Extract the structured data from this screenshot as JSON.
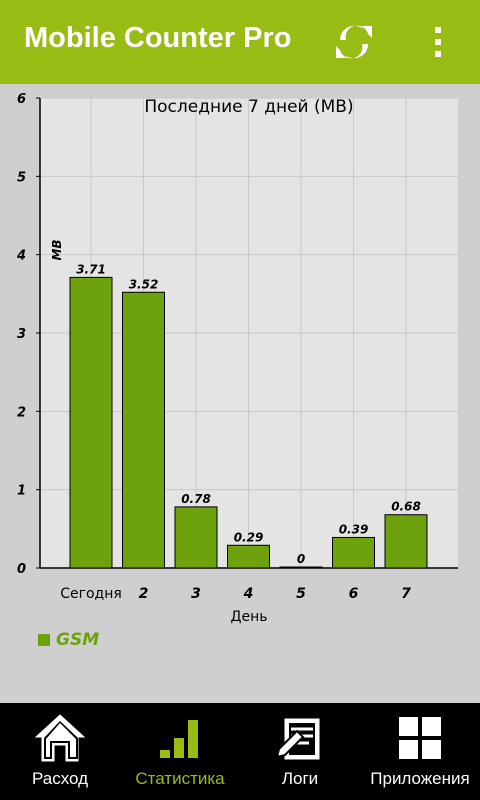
{
  "app": {
    "title": "Mobile Counter Pro"
  },
  "actions": {
    "refresh_icon": "refresh-icon",
    "overflow_icon": "overflow-menu-icon"
  },
  "chart_data": {
    "type": "bar",
    "title": "Последние 7 дней (MB)",
    "xlabel": "День",
    "ylabel": "MB",
    "ylim": [
      0,
      6
    ],
    "yticks": [
      0,
      1,
      2,
      3,
      4,
      5,
      6
    ],
    "categories": [
      "Сегодня",
      "2",
      "3",
      "4",
      "5",
      "6",
      "7"
    ],
    "series": [
      {
        "name": "GSM",
        "values": [
          3.71,
          3.52,
          0.78,
          0.29,
          0,
          0.39,
          0.68
        ],
        "color": "#6ea20c"
      }
    ],
    "data_labels": [
      "3.71",
      "3.52",
      "0.78",
      "0.29",
      "0",
      "0.39",
      "0.68"
    ],
    "grid": true,
    "legend_position": "bottom-left"
  },
  "legend": {
    "label": "GSM",
    "color": "#6ea20c"
  },
  "nav": {
    "items": [
      {
        "label": "Расход",
        "icon": "home-icon",
        "active": false
      },
      {
        "label": "Статистика",
        "icon": "stats-icon",
        "active": true
      },
      {
        "label": "Логи",
        "icon": "logs-icon",
        "active": false
      },
      {
        "label": "Приложения",
        "icon": "apps-icon",
        "active": false
      }
    ]
  },
  "colors": {
    "accent": "#98bc14",
    "bar": "#6ea20c",
    "background": "#cfcfcf"
  }
}
